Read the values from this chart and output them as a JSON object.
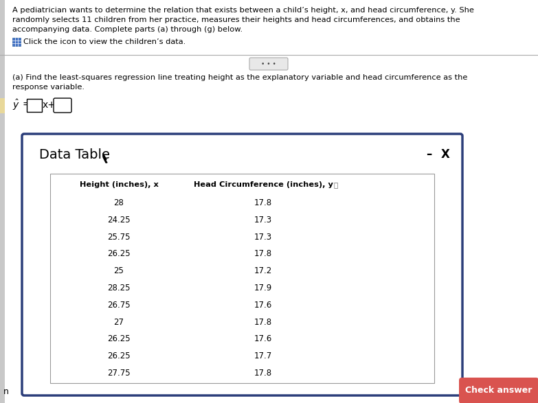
{
  "background_color": "#c8c8c8",
  "main_text_line1": "A pediatrician wants to determine the relation that exists between a child’s height, x, and head circumference, y. She",
  "main_text_line2": "randomly selects 11 children from her practice, measures their heights and head circumferences, and obtains the",
  "main_text_line3": "accompanying data. Complete parts (a) through (g) below.",
  "icon_text": "Click the icon to view the children’s data.",
  "part_a_line1": "(a) Find the least-squares regression line treating height as the explanatory variable and head circumference as the",
  "part_a_line2": "response variable.",
  "divider_text": "• • •",
  "data_table_title": "Data Table",
  "col1_header": "Height (inches), x",
  "col2_header": "Head Circumference (inches), y",
  "heights": [
    28,
    24.25,
    25.75,
    26.25,
    25,
    28.25,
    26.75,
    27,
    26.25,
    26.25,
    27.75
  ],
  "circumferences": [
    17.8,
    17.3,
    17.3,
    17.8,
    17.2,
    17.9,
    17.6,
    17.8,
    17.6,
    17.7,
    17.8
  ],
  "minus_text": "–",
  "x_text": "X",
  "check_answer_color": "#d9534f",
  "check_answer_text": "Check answer",
  "table_border_color": "#2c3e7a",
  "n_text": "n",
  "yellow_left_bar": "#e8d89a"
}
